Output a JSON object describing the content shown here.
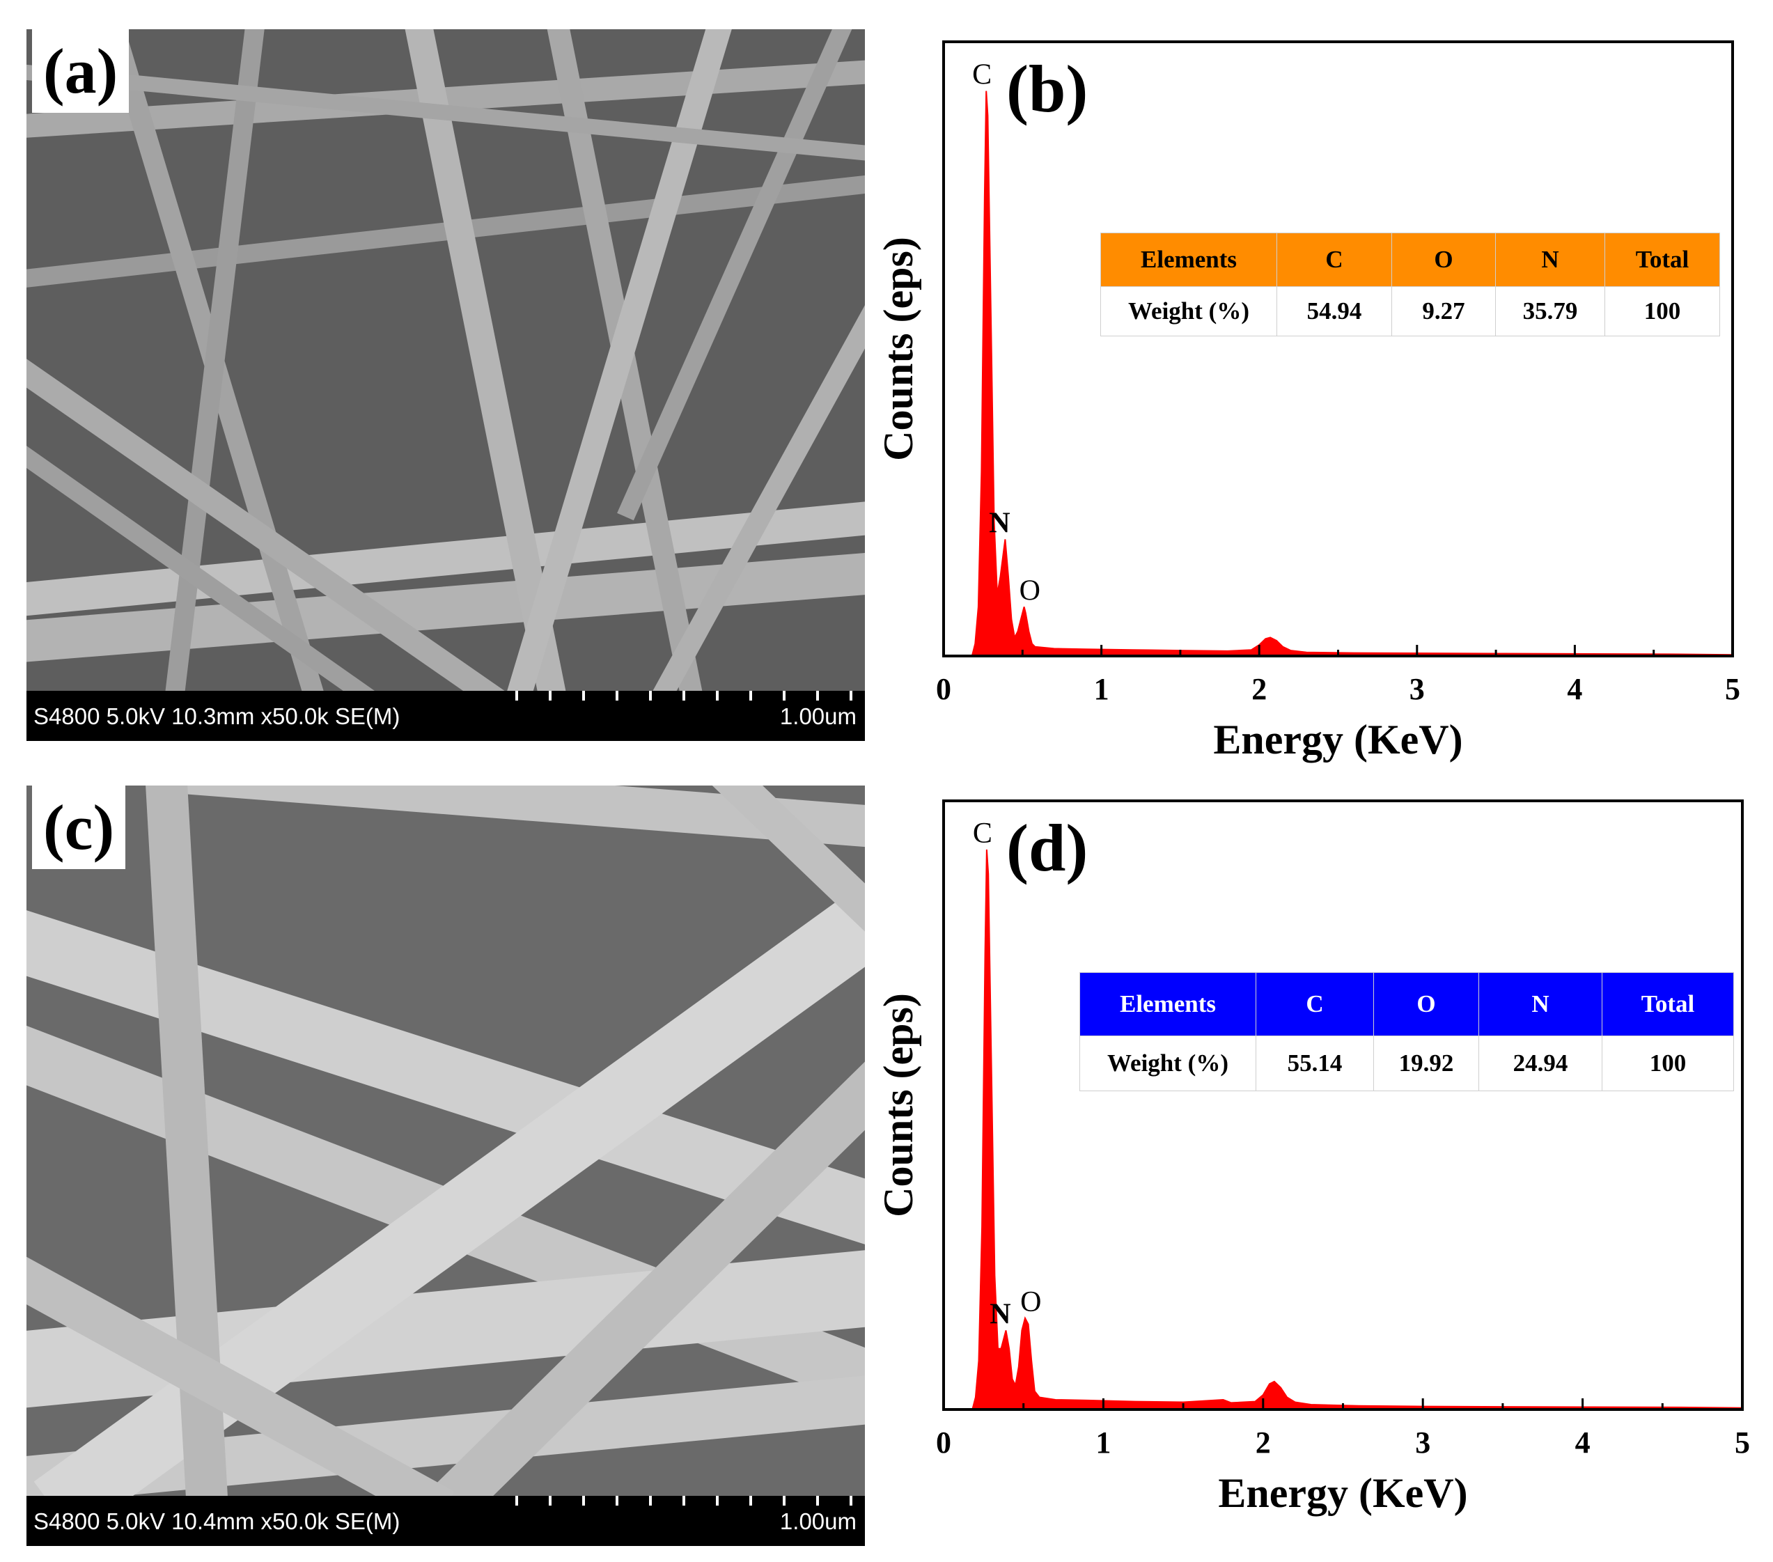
{
  "panels": {
    "a": {
      "label": "(a)",
      "sem_info": "S4800 5.0kV 10.3mm x50.0k SE(M)",
      "scale_label": "1.00um"
    },
    "c": {
      "label": "(c)",
      "sem_info": "S4800 5.0kV 10.4mm x50.0k SE(M)",
      "scale_label": "1.00um"
    }
  },
  "chart_data": [
    {
      "panel": "b",
      "label": "(b)",
      "type": "area",
      "xlabel": "Energy (KeV)",
      "ylabel": "Counts (eps)",
      "xlim": [
        0,
        5
      ],
      "xticks": [
        "0",
        "1",
        "2",
        "3",
        "4",
        "5"
      ],
      "line_color": "#ff0000",
      "x": [
        0.18,
        0.2,
        0.22,
        0.24,
        0.26,
        0.27,
        0.28,
        0.3,
        0.32,
        0.34,
        0.36,
        0.38,
        0.39,
        0.41,
        0.43,
        0.45,
        0.47,
        0.49,
        0.51,
        0.52,
        0.54,
        0.56,
        0.58,
        0.7,
        0.9,
        1.2,
        1.5,
        1.8,
        1.95,
        2.0,
        2.04,
        2.07,
        2.11,
        2.15,
        2.2,
        2.3,
        2.6,
        3.0,
        3.5,
        4.0,
        4.6,
        5.0
      ],
      "y": [
        0,
        2,
        8,
        30,
        75,
        92,
        88,
        55,
        22,
        10,
        13,
        17,
        19,
        13,
        6,
        3,
        4,
        6,
        8,
        7,
        4,
        2,
        1.5,
        1.2,
        1.1,
        1.0,
        0.9,
        0.8,
        1.0,
        1.8,
        2.8,
        3.0,
        2.5,
        1.5,
        0.9,
        0.6,
        0.5,
        0.45,
        0.4,
        0.35,
        0.3,
        0.2
      ],
      "ylim": [
        0,
        100
      ],
      "peaks": [
        {
          "element": "C",
          "x": 0.27,
          "y": 92
        },
        {
          "element": "N",
          "x": 0.39,
          "y": 19
        },
        {
          "element": "O",
          "x": 0.52,
          "y": 8
        }
      ],
      "table": {
        "header_color": "#ff8c00",
        "headers": [
          "Elements",
          "C",
          "O",
          "N",
          "Total"
        ],
        "row": [
          "Weight (%)",
          "54.94",
          "9.27",
          "35.79",
          "100"
        ]
      }
    },
    {
      "panel": "d",
      "label": "(d)",
      "type": "area",
      "xlabel": "Energy (KeV)",
      "ylabel": "Counts (eps)",
      "xlim": [
        0,
        5
      ],
      "xticks": [
        "0",
        "1",
        "2",
        "3",
        "4",
        "5"
      ],
      "line_color": "#ff0000",
      "x": [
        0.18,
        0.2,
        0.22,
        0.24,
        0.26,
        0.27,
        0.28,
        0.3,
        0.32,
        0.34,
        0.36,
        0.38,
        0.39,
        0.41,
        0.43,
        0.45,
        0.47,
        0.49,
        0.51,
        0.53,
        0.55,
        0.57,
        0.6,
        0.7,
        0.9,
        1.2,
        1.5,
        1.75,
        1.8,
        1.95,
        2.0,
        2.04,
        2.07,
        2.11,
        2.15,
        2.2,
        2.3,
        2.6,
        3.0,
        3.5,
        4.0,
        4.6,
        5.0
      ],
      "y": [
        0,
        2,
        8,
        30,
        75,
        92,
        88,
        55,
        22,
        10,
        10,
        12,
        13,
        10,
        5,
        4,
        7,
        13,
        15,
        14,
        8,
        3,
        2,
        1.6,
        1.5,
        1.3,
        1.2,
        1.6,
        1.1,
        1.3,
        2.4,
        4.2,
        4.6,
        3.6,
        2.0,
        1.2,
        0.8,
        0.6,
        0.5,
        0.45,
        0.4,
        0.35,
        0.25
      ],
      "ylim": [
        0,
        100
      ],
      "peaks": [
        {
          "element": "C",
          "x": 0.27,
          "y": 92
        },
        {
          "element": "N",
          "x": 0.39,
          "y": 13
        },
        {
          "element": "O",
          "x": 0.52,
          "y": 15
        }
      ],
      "table": {
        "header_color": "#0000ff",
        "headers": [
          "Elements",
          "C",
          "O",
          "N",
          "Total"
        ],
        "row": [
          "Weight (%)",
          "55.14",
          "19.92",
          "24.94",
          "100"
        ]
      }
    }
  ]
}
